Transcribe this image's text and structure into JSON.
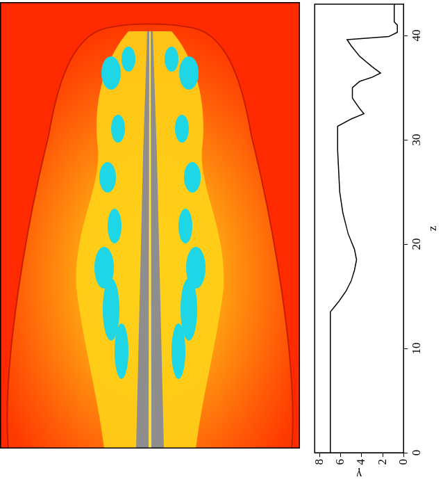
{
  "chart_data": {
    "type": "line",
    "x_label": "z",
    "y_label": "γ",
    "x": [
      0,
      5,
      10,
      13.5,
      14.5,
      15.5,
      16.5,
      17.5,
      18.5,
      19.5,
      21,
      23,
      25,
      27,
      29,
      31.3,
      32,
      32.5,
      33,
      34,
      35,
      35.6,
      36,
      36.4,
      37,
      38,
      39,
      39.6,
      39.9,
      40.3,
      41,
      41.3,
      43
    ],
    "values": [
      7,
      7,
      7,
      7,
      6.2,
      5.5,
      5.0,
      4.7,
      4.5,
      4.7,
      5.3,
      5.8,
      6.1,
      6.2,
      6.3,
      6.3,
      5.0,
      3.8,
      4.2,
      4.9,
      4.9,
      4.2,
      3.0,
      2.2,
      3.0,
      4.2,
      5.0,
      5.4,
      1.4,
      0.6,
      0.6,
      0.9,
      0.9
    ],
    "color": "#000000",
    "xlim": [
      0,
      43
    ],
    "xticks": [
      0,
      10,
      20,
      30,
      40
    ],
    "ylim": [
      0,
      8.5
    ],
    "yticks": [
      0,
      2,
      4,
      6,
      8
    ],
    "grid": false
  }
}
